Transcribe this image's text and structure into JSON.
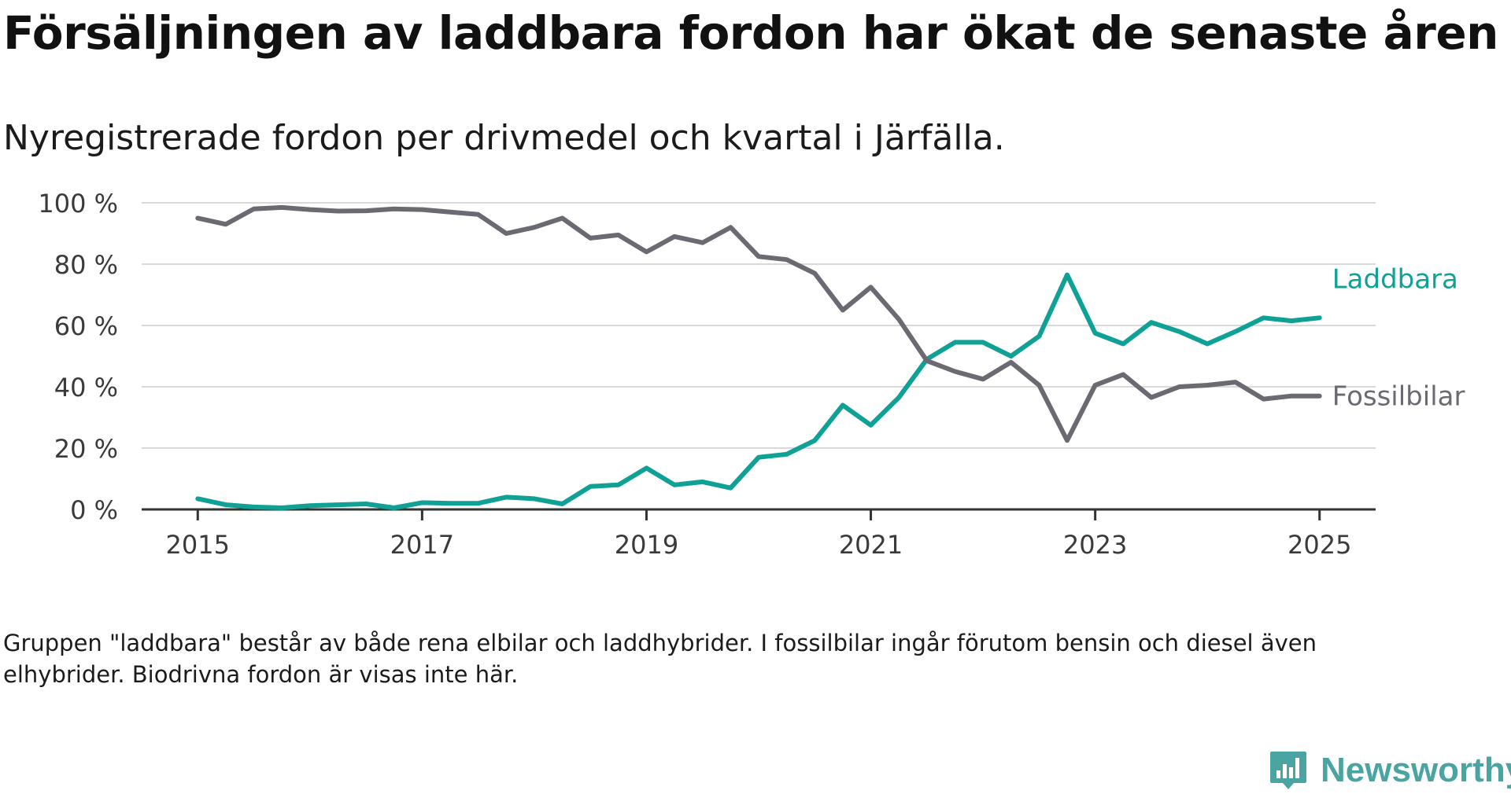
{
  "title": "Försäljningen av laddbara fordon har ökat de senaste åren",
  "subtitle": "Nyregistrerade fordon per drivmedel och kvartal i Järfälla.",
  "footnote": "Gruppen \"laddbara\" består av både rena elbilar och laddhybrider. I fossilbilar ingår förutom bensin och diesel även elhybrider. Biodrivna fordon är visas inte här.",
  "brand": {
    "name": "Newsworthy",
    "icon": "newsworthy-logo-icon"
  },
  "colors": {
    "laddbara": "#0fa195",
    "fossilbilar": "#6b6a72",
    "grid": "#d9d9d9",
    "axis": "#333333",
    "tick_text": "#3a3a3a",
    "brand": "#4aa5a2"
  },
  "chart_data": {
    "type": "line",
    "title": "Försäljningen av laddbara fordon har ökat de senaste åren",
    "subtitle": "Nyregistrerade fordon per drivmedel och kvartal i Järfälla.",
    "xlabel": "",
    "ylabel": "",
    "x": [
      2015.0,
      2015.25,
      2015.5,
      2015.75,
      2016.0,
      2016.25,
      2016.5,
      2016.75,
      2017.0,
      2017.25,
      2017.5,
      2017.75,
      2018.0,
      2018.25,
      2018.5,
      2018.75,
      2019.0,
      2019.25,
      2019.5,
      2019.75,
      2020.0,
      2020.25,
      2020.5,
      2020.75,
      2021.0,
      2021.25,
      2021.5,
      2021.75,
      2022.0,
      2022.25,
      2022.5,
      2022.75,
      2023.0,
      2023.25,
      2023.5,
      2023.75,
      2024.0,
      2024.25,
      2024.5,
      2024.75,
      2025.0
    ],
    "xlim": [
      2014.5,
      2025.5
    ],
    "ylim": [
      0,
      100
    ],
    "x_ticks": [
      2015,
      2017,
      2019,
      2021,
      2023,
      2025
    ],
    "x_tick_labels": [
      "2015",
      "2017",
      "2019",
      "2021",
      "2023",
      "2025"
    ],
    "y_ticks": [
      0,
      20,
      40,
      60,
      80,
      100
    ],
    "y_tick_labels": [
      "0 %",
      "20 %",
      "40 %",
      "60 %",
      "80 %",
      "100 %"
    ],
    "grid": true,
    "legend": "inline-right",
    "series": [
      {
        "name": "Laddbara",
        "color": "#0fa195",
        "values": [
          3.5,
          1.5,
          0.8,
          0.5,
          1.2,
          1.5,
          1.8,
          0.5,
          2.2,
          2.0,
          2.0,
          4.0,
          3.5,
          1.8,
          7.5,
          8.0,
          13.5,
          8.0,
          9.0,
          7.0,
          17.0,
          18.0,
          22.5,
          34.0,
          27.5,
          36.5,
          49.0,
          54.5,
          54.5,
          50.0,
          56.5,
          76.5,
          57.5,
          54.0,
          61.0,
          58.0,
          54.0,
          58.0,
          62.5,
          61.5,
          62.5
        ]
      },
      {
        "name": "Fossilbilar",
        "color": "#6b6a72",
        "values": [
          95.0,
          93.0,
          98.0,
          98.5,
          97.8,
          97.3,
          97.4,
          98.0,
          97.8,
          97.0,
          96.2,
          90.0,
          92.0,
          95.0,
          88.5,
          89.5,
          84.0,
          89.0,
          87.0,
          92.0,
          82.5,
          81.5,
          77.0,
          65.0,
          72.5,
          62.0,
          48.5,
          45.0,
          42.5,
          48.0,
          40.5,
          22.5,
          40.5,
          44.0,
          36.5,
          40.0,
          40.5,
          41.5,
          36.0,
          37.0,
          37.0
        ]
      }
    ]
  }
}
